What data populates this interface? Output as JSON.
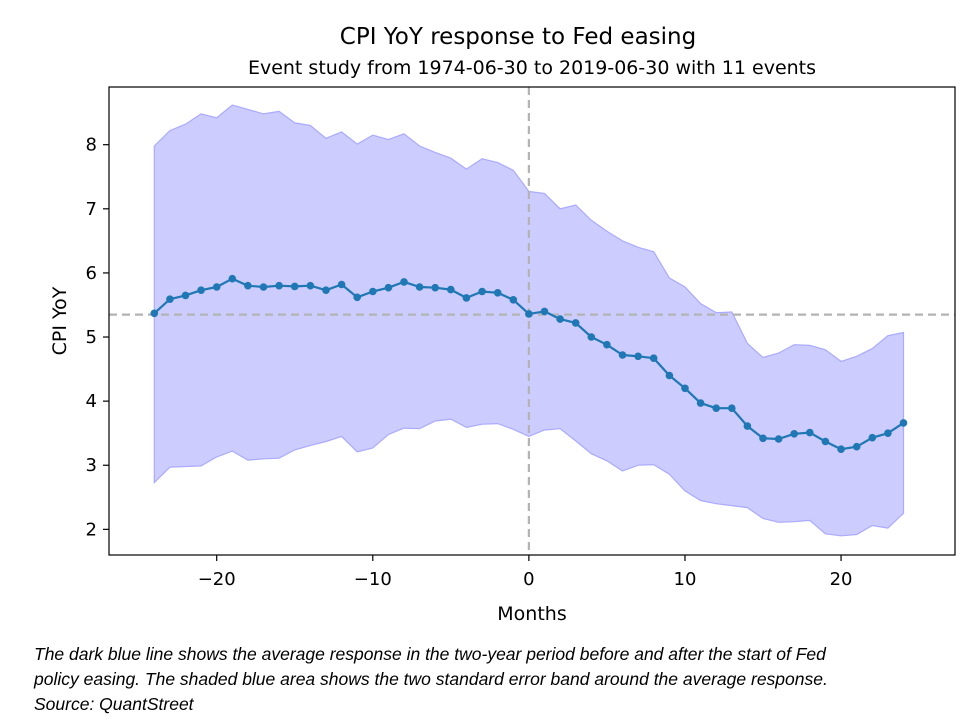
{
  "chart_data": {
    "type": "line",
    "title": "CPI YoY response to Fed easing",
    "subtitle": "Event study from 1974-06-30 to 2019-06-30 with 11 events",
    "xlabel": "Months",
    "ylabel": "CPI YoY",
    "xlim": [
      -26.9,
      27.3
    ],
    "ylim": [
      1.6,
      8.9
    ],
    "x_ticks": [
      -20,
      -10,
      0,
      10,
      20
    ],
    "x_tick_labels": [
      "−20",
      "−10",
      "0",
      "10",
      "20"
    ],
    "y_ticks": [
      2,
      3,
      4,
      5,
      6,
      7,
      8
    ],
    "y_tick_labels": [
      "2",
      "3",
      "4",
      "5",
      "6",
      "7",
      "8"
    ],
    "grid": false,
    "colors": {
      "line": "#1f77b4",
      "band_fill": "#ccccff",
      "band_edge": "#aaaaff",
      "ref_lines": "#b3b3b3"
    },
    "reference_lines": {
      "vertical_x": 0,
      "horizontal_y": 5.35
    },
    "x": [
      -24,
      -23,
      -22,
      -21,
      -20,
      -19,
      -18,
      -17,
      -16,
      -15,
      -14,
      -13,
      -12,
      -11,
      -10,
      -9,
      -8,
      -7,
      -6,
      -5,
      -4,
      -3,
      -2,
      -1,
      0,
      1,
      2,
      3,
      4,
      5,
      6,
      7,
      8,
      9,
      10,
      11,
      12,
      13,
      14,
      15,
      16,
      17,
      18,
      19,
      20,
      21,
      22,
      23,
      24
    ],
    "series": [
      {
        "values": [
          5.37,
          5.59,
          5.65,
          5.73,
          5.78,
          5.91,
          5.8,
          5.78,
          5.8,
          5.79,
          5.8,
          5.73,
          5.82,
          5.62,
          5.71,
          5.77,
          5.86,
          5.78,
          5.77,
          5.74,
          5.61,
          5.71,
          5.69,
          5.58,
          5.36,
          5.4,
          5.28,
          5.22,
          5.0,
          4.88,
          4.72,
          4.7,
          4.67,
          4.4,
          4.2,
          3.97,
          3.89,
          3.89,
          3.61,
          3.42,
          3.41,
          3.49,
          3.51,
          3.37,
          3.25,
          3.29,
          3.43,
          3.5,
          3.66
        ]
      }
    ],
    "band_upper": [
      7.98,
      8.22,
      8.32,
      8.48,
      8.42,
      8.62,
      8.55,
      8.48,
      8.52,
      8.34,
      8.3,
      8.1,
      8.2,
      8.01,
      8.15,
      8.08,
      8.17,
      7.98,
      7.88,
      7.79,
      7.62,
      7.78,
      7.72,
      7.6,
      7.27,
      7.24,
      7.0,
      7.06,
      6.82,
      6.65,
      6.5,
      6.4,
      6.33,
      5.92,
      5.78,
      5.52,
      5.38,
      5.39,
      4.9,
      4.68,
      4.75,
      4.88,
      4.87,
      4.8,
      4.62,
      4.7,
      4.82,
      5.02,
      5.07
    ],
    "band_lower": [
      2.73,
      2.97,
      2.98,
      2.99,
      3.13,
      3.22,
      3.08,
      3.1,
      3.11,
      3.24,
      3.31,
      3.37,
      3.45,
      3.21,
      3.27,
      3.48,
      3.58,
      3.57,
      3.69,
      3.72,
      3.59,
      3.64,
      3.65,
      3.56,
      3.45,
      3.55,
      3.57,
      3.38,
      3.18,
      3.07,
      2.91,
      3.0,
      3.01,
      2.86,
      2.6,
      2.45,
      2.4,
      2.37,
      2.34,
      2.17,
      2.11,
      2.12,
      2.14,
      1.93,
      1.9,
      1.92,
      2.06,
      2.02,
      2.25
    ]
  },
  "caption": {
    "line1": "The dark blue line shows the average response in the two-year period before and after the start of Fed",
    "line2": "policy easing. The shaded blue area shows the two standard error band around the average response.",
    "source": "Source: QuantStreet"
  }
}
